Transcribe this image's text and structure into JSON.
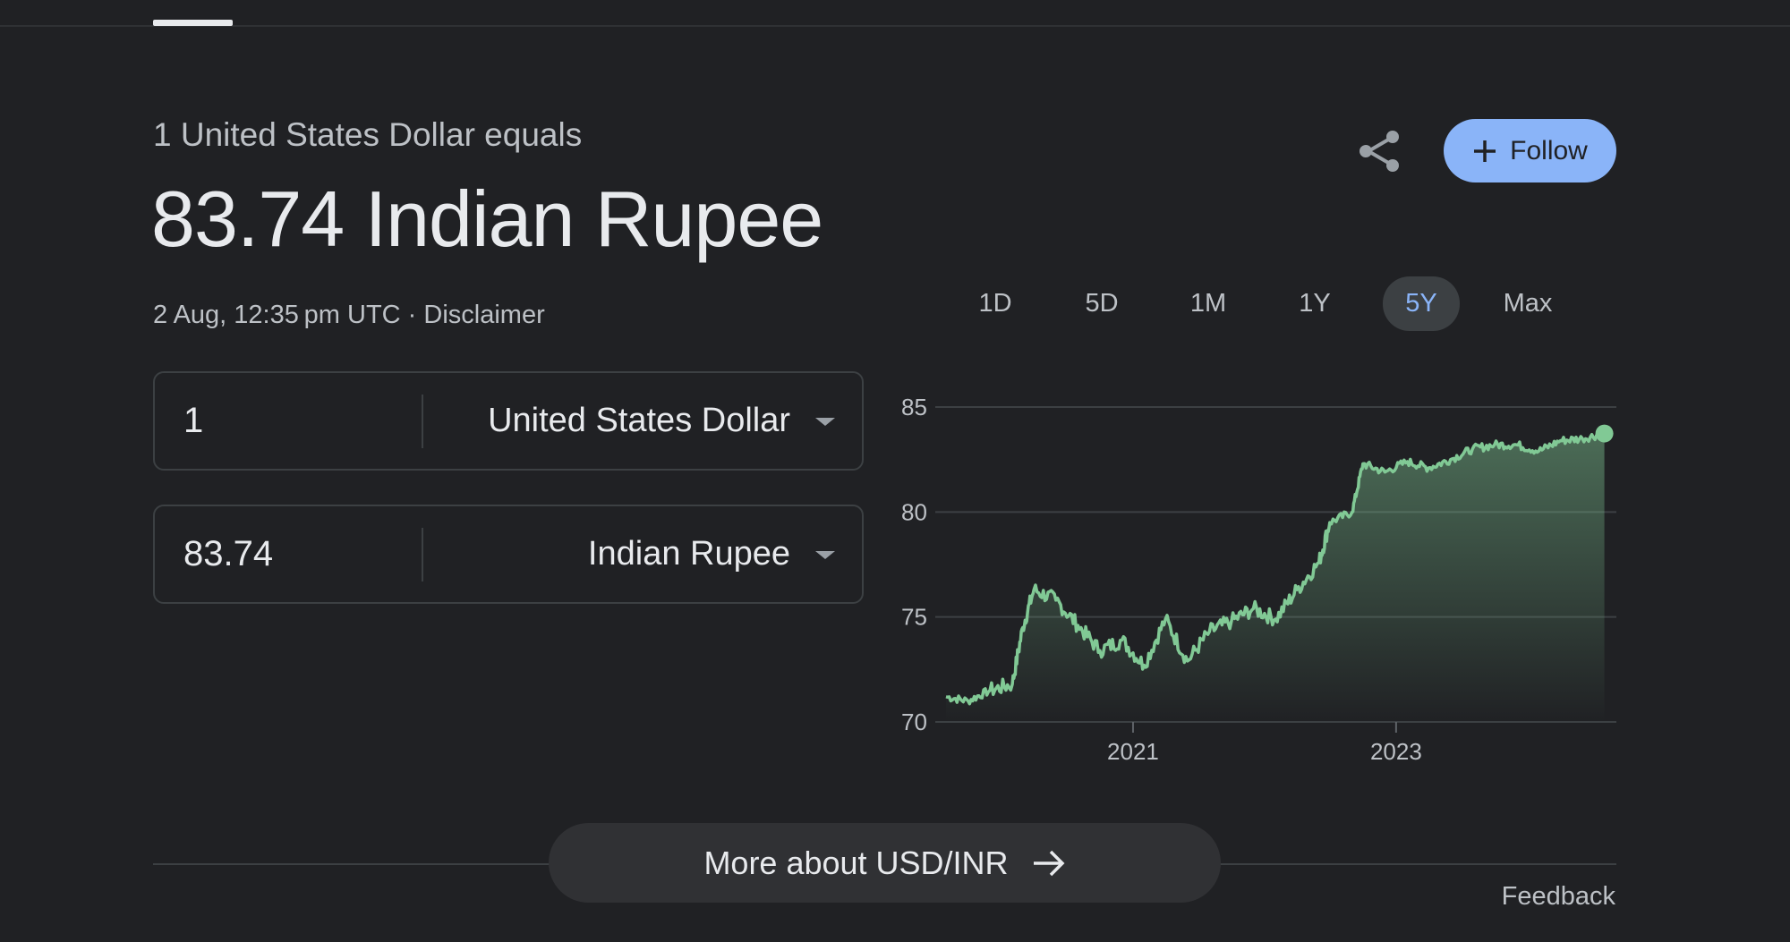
{
  "header": {
    "equals_text": "1 United States Dollar equals",
    "value_text": "83.74 Indian Rupee",
    "timestamp": "2 Aug, 12:35 pm UTC",
    "separator": " · ",
    "disclaimer": "Disclaimer"
  },
  "actions": {
    "share_icon": "share-icon",
    "follow_label": "Follow"
  },
  "converter": {
    "from": {
      "amount": "1",
      "currency": "United States Dollar"
    },
    "to": {
      "amount": "83.74",
      "currency": "Indian Rupee"
    }
  },
  "range_tabs": {
    "items": [
      "1D",
      "5D",
      "1M",
      "1Y",
      "5Y",
      "Max"
    ],
    "selected": "5Y"
  },
  "chart_data": {
    "type": "area",
    "title": "",
    "xlabel": "",
    "ylabel": "",
    "ylim": [
      70,
      85
    ],
    "yticks": [
      70,
      75,
      80,
      85
    ],
    "xticks": [
      "2021",
      "2023"
    ],
    "grid": true,
    "line_color": "#81c995",
    "series": [
      {
        "x": [
          "2019-08",
          "2019-10",
          "2019-12",
          "2020-02",
          "2020-03",
          "2020-04",
          "2020-06",
          "2020-08",
          "2020-10",
          "2020-12",
          "2021-02",
          "2021-04",
          "2021-06",
          "2021-08",
          "2021-10",
          "2021-12",
          "2022-02",
          "2022-04",
          "2022-06",
          "2022-07",
          "2022-09",
          "2022-10",
          "2022-12",
          "2023-02",
          "2023-04",
          "2023-06",
          "2023-08",
          "2023-10",
          "2023-12",
          "2024-02",
          "2024-04",
          "2024-06",
          "2024-08"
        ],
        "values": [
          71.2,
          71.0,
          71.5,
          71.8,
          74.5,
          76.3,
          75.8,
          74.6,
          73.4,
          73.9,
          72.7,
          74.9,
          72.9,
          74.3,
          74.8,
          75.4,
          74.9,
          76.3,
          77.6,
          79.5,
          80.0,
          82.3,
          81.9,
          82.4,
          82.1,
          82.5,
          83.0,
          83.2,
          83.2,
          82.9,
          83.4,
          83.5,
          83.74
        ]
      }
    ]
  },
  "footer": {
    "more_label": "More about USD/INR",
    "feedback": "Feedback"
  }
}
